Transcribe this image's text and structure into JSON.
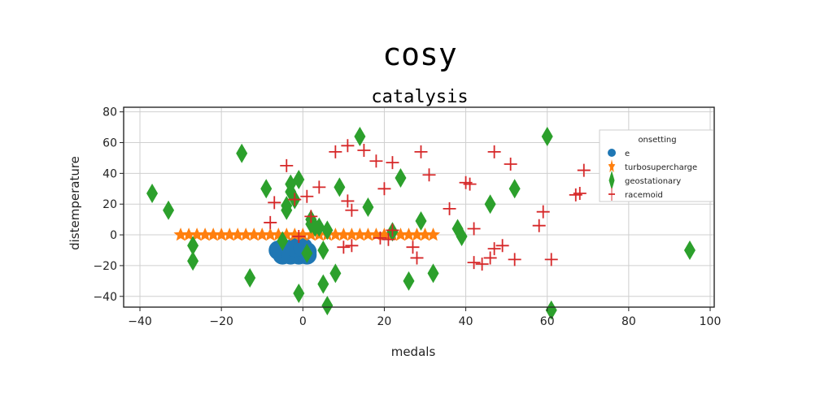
{
  "chart_data": {
    "type": "scatter",
    "title": "cosy",
    "subtitle": "catalysis",
    "xlabel": "medals",
    "ylabel": "distemperature",
    "xlim": [
      -44,
      101
    ],
    "ylim": [
      -47,
      83
    ],
    "x_ticks": [
      -40,
      -20,
      0,
      20,
      40,
      60,
      80,
      100
    ],
    "x_tick_labels": [
      "−40",
      "−20",
      "0",
      "20",
      "40",
      "60",
      "80",
      "100"
    ],
    "y_ticks": [
      -40,
      -20,
      0,
      20,
      40,
      60,
      80
    ],
    "y_tick_labels": [
      "−40",
      "−20",
      "0",
      "20",
      "40",
      "60",
      "80"
    ],
    "grid": true,
    "legend": {
      "title": "onsetting",
      "placement": "upper right"
    },
    "colors": {
      "e": "#1f77b4",
      "turbosupercharge": "#ff7f0e",
      "geostationary": "#2ca02c",
      "racemoid": "#d62728"
    },
    "series": [
      {
        "name": "e",
        "marker": "circle",
        "points": [
          [
            -6,
            -10
          ],
          [
            -5,
            -11
          ],
          [
            -4,
            -10
          ],
          [
            -3,
            -11
          ],
          [
            -2,
            -10
          ],
          [
            -1,
            -11
          ],
          [
            0,
            -10
          ],
          [
            1,
            -11
          ],
          [
            -5,
            -13
          ],
          [
            -3,
            -13
          ],
          [
            -1,
            -13
          ],
          [
            1,
            -13
          ],
          [
            -2,
            -8
          ],
          [
            0,
            -8
          ]
        ]
      },
      {
        "name": "turbosupercharge",
        "marker": "star",
        "points": [
          [
            -30,
            0
          ],
          [
            -28,
            0
          ],
          [
            -26,
            0
          ],
          [
            -24,
            0
          ],
          [
            -22,
            0
          ],
          [
            -20,
            0
          ],
          [
            -18,
            0
          ],
          [
            -16,
            0
          ],
          [
            -14,
            0
          ],
          [
            -12,
            0
          ],
          [
            -10,
            0
          ],
          [
            -8,
            0
          ],
          [
            -6,
            0
          ],
          [
            -4,
            0
          ],
          [
            -2,
            0
          ],
          [
            0,
            0
          ],
          [
            2,
            0
          ],
          [
            4,
            0
          ],
          [
            6,
            0
          ],
          [
            8,
            0
          ],
          [
            10,
            0
          ],
          [
            12,
            0
          ],
          [
            14,
            0
          ],
          [
            16,
            0
          ],
          [
            18,
            0
          ],
          [
            20,
            0
          ],
          [
            22,
            0
          ],
          [
            24,
            0
          ],
          [
            26,
            0
          ],
          [
            28,
            0
          ],
          [
            30,
            0
          ],
          [
            32,
            0
          ]
        ]
      },
      {
        "name": "geostationary",
        "marker": "thin_diamond",
        "points": [
          [
            -37,
            27
          ],
          [
            -33,
            16
          ],
          [
            -27,
            -7
          ],
          [
            -27,
            -17
          ],
          [
            -15,
            53
          ],
          [
            -13,
            -28
          ],
          [
            -9,
            30
          ],
          [
            -5,
            -4
          ],
          [
            -3,
            33
          ],
          [
            -2,
            23
          ],
          [
            -4,
            19
          ],
          [
            -3,
            28
          ],
          [
            -1,
            36
          ],
          [
            -4,
            16
          ],
          [
            -1,
            -38
          ],
          [
            1,
            -12
          ],
          [
            2,
            10
          ],
          [
            2,
            7
          ],
          [
            3,
            5
          ],
          [
            4,
            5
          ],
          [
            6,
            3
          ],
          [
            5,
            -10
          ],
          [
            5,
            -32
          ],
          [
            6,
            -46
          ],
          [
            8,
            -25
          ],
          [
            9,
            31
          ],
          [
            14,
            64
          ],
          [
            16,
            18
          ],
          [
            22,
            2
          ],
          [
            24,
            37
          ],
          [
            26,
            -30
          ],
          [
            29,
            9
          ],
          [
            32,
            -25
          ],
          [
            38,
            4
          ],
          [
            39,
            -1
          ],
          [
            46,
            20
          ],
          [
            52,
            30
          ],
          [
            60,
            64
          ],
          [
            61,
            -49
          ],
          [
            95,
            -10
          ]
        ]
      },
      {
        "name": "racemoid",
        "marker": "plus",
        "points": [
          [
            -7,
            21
          ],
          [
            -8,
            8
          ],
          [
            -4,
            45
          ],
          [
            -2,
            23
          ],
          [
            1,
            25
          ],
          [
            -1,
            -1
          ],
          [
            2,
            12
          ],
          [
            4,
            31
          ],
          [
            8,
            54
          ],
          [
            11,
            58
          ],
          [
            11,
            22
          ],
          [
            12,
            16
          ],
          [
            15,
            55
          ],
          [
            18,
            48
          ],
          [
            20,
            30
          ],
          [
            22,
            47
          ],
          [
            10,
            -8
          ],
          [
            12,
            -7
          ],
          [
            19,
            -2
          ],
          [
            21,
            -3
          ],
          [
            22,
            3
          ],
          [
            27,
            -8
          ],
          [
            29,
            54
          ],
          [
            31,
            39
          ],
          [
            28,
            -15
          ],
          [
            36,
            17
          ],
          [
            40,
            34
          ],
          [
            41,
            33
          ],
          [
            42,
            4
          ],
          [
            42,
            -18
          ],
          [
            44,
            -19
          ],
          [
            46,
            -15
          ],
          [
            47,
            -9
          ],
          [
            47,
            54
          ],
          [
            49,
            -7
          ],
          [
            51,
            46
          ],
          [
            52,
            -16
          ],
          [
            58,
            6
          ],
          [
            59,
            15
          ],
          [
            61,
            -16
          ],
          [
            67,
            26
          ],
          [
            68,
            27
          ],
          [
            69,
            42
          ]
        ]
      }
    ]
  }
}
